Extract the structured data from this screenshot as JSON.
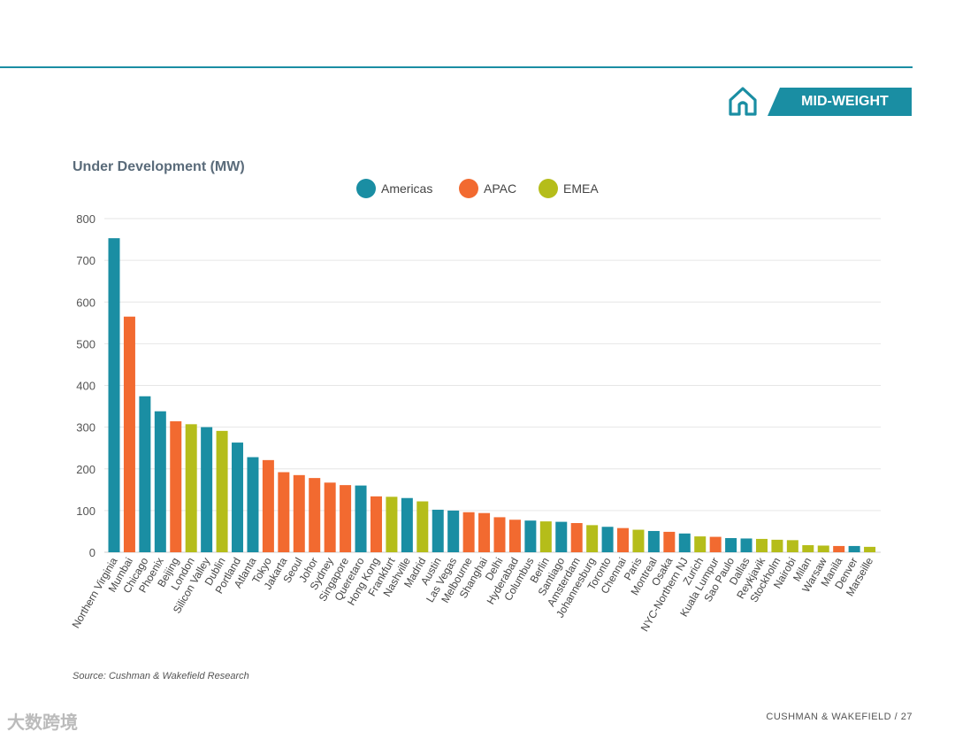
{
  "header": {
    "badge_label": "MID-WEIGHT",
    "home_icon": "home-icon"
  },
  "colors": {
    "Americas": "#1a8ea3",
    "APAC": "#f26a30",
    "EMEA": "#b5bd1a",
    "grid": "#e6e6e6",
    "text": "#555555"
  },
  "chart_data": {
    "type": "bar",
    "title": "Under Development (MW)",
    "xlabel": "",
    "ylabel": "",
    "ylim": [
      0,
      800
    ],
    "yticks": [
      0,
      100,
      200,
      300,
      400,
      500,
      600,
      700,
      800
    ],
    "grid": true,
    "legend_position": "top-center",
    "legend": [
      "Americas",
      "APAC",
      "EMEA"
    ],
    "categories": [
      "Northern Virginia",
      "Mumbai",
      "Chicago",
      "Phoenix",
      "Beijing",
      "London",
      "Silicon Valley",
      "Dublin",
      "Portland",
      "Atlanta",
      "Tokyo",
      "Jakarta",
      "Seoul",
      "Johor",
      "Sydney",
      "Singapore",
      "Queretaro",
      "Hong Kong",
      "Frankfurt",
      "Nashville",
      "Madrid",
      "Austin",
      "Las Vegas",
      "Melbourne",
      "Shanghai",
      "Delhi",
      "Hyderabad",
      "Columbus",
      "Berlin",
      "Santiago",
      "Amsterdam",
      "Johannesburg",
      "Toronto",
      "Chennai",
      "Paris",
      "Montreal",
      "Osaka",
      "NYC-Northern NJ",
      "Zurich",
      "Kuala Lumpur",
      "Sao Paulo",
      "Dallas",
      "Reykjavik",
      "Stockholm",
      "Nairobi",
      "Milan",
      "Warsaw",
      "Manila",
      "Denver",
      "Marseille"
    ],
    "regions": [
      "Americas",
      "APAC",
      "Americas",
      "Americas",
      "APAC",
      "EMEA",
      "Americas",
      "EMEA",
      "Americas",
      "Americas",
      "APAC",
      "APAC",
      "APAC",
      "APAC",
      "APAC",
      "APAC",
      "Americas",
      "APAC",
      "EMEA",
      "Americas",
      "EMEA",
      "Americas",
      "Americas",
      "APAC",
      "APAC",
      "APAC",
      "APAC",
      "Americas",
      "EMEA",
      "Americas",
      "APAC",
      "EMEA",
      "Americas",
      "APAC",
      "EMEA",
      "Americas",
      "APAC",
      "Americas",
      "EMEA",
      "APAC",
      "Americas",
      "Americas",
      "EMEA",
      "EMEA",
      "EMEA",
      "EMEA",
      "EMEA",
      "APAC",
      "Americas",
      "EMEA"
    ],
    "values": [
      753,
      565,
      374,
      338,
      314,
      307,
      300,
      291,
      263,
      228,
      221,
      192,
      185,
      178,
      167,
      161,
      160,
      134,
      133,
      130,
      122,
      102,
      100,
      96,
      94,
      84,
      78,
      76,
      74,
      73,
      70,
      65,
      61,
      58,
      54,
      51,
      49,
      45,
      38,
      37,
      34,
      33,
      32,
      30,
      29,
      17,
      16,
      15,
      15,
      13
    ]
  },
  "source_text": "Source: Cushman & Wakefield Research",
  "footer_text": "CUSHMAN & WAKEFIELD / 27",
  "watermark_text": "大数跨境"
}
